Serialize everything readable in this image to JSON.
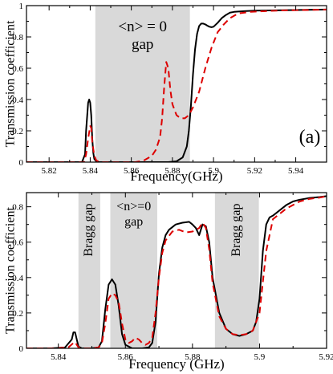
{
  "chart_data": [
    {
      "type": "line",
      "panel_label": "(a)",
      "xlabel": "Frequency(GHz)",
      "ylabel": "Transmission coefficient",
      "xlim": [
        5.809,
        5.955
      ],
      "ylim": [
        0,
        1.0
      ],
      "xticks": [
        5.82,
        5.84,
        5.86,
        5.88,
        5.9,
        5.92,
        5.94
      ],
      "xtick_labels": [
        "5.82",
        "5.84",
        "5.86",
        "5.88",
        "5.9",
        "5.92",
        "5.94"
      ],
      "yticks": [
        0,
        0.2,
        0.4,
        0.6,
        0.8,
        1
      ],
      "ytick_labels": [
        "0",
        "0.2",
        "0.4",
        "0.6",
        "0.8",
        "1"
      ],
      "grid": false,
      "shaded_regions": [
        {
          "from": 5.8425,
          "to": 5.8885,
          "label_lines": [
            "<n> = 0",
            "gap"
          ],
          "label_orientation": "horizontal"
        }
      ],
      "series": [
        {
          "style": "solid",
          "color": "#000000",
          "x": [
            5.809,
            5.836,
            5.8375,
            5.838,
            5.839,
            5.8395,
            5.84,
            5.8405,
            5.841,
            5.8415,
            5.842,
            5.843,
            5.844,
            5.846,
            5.85,
            5.86,
            5.87,
            5.878,
            5.882,
            5.885,
            5.887,
            5.888,
            5.889,
            5.89,
            5.891,
            5.892,
            5.893,
            5.894,
            5.895,
            5.896,
            5.897,
            5.898,
            5.899,
            5.9,
            5.902,
            5.904,
            5.906,
            5.908,
            5.91,
            5.915,
            5.92,
            5.93,
            5.94,
            5.955
          ],
          "y": [
            0,
            0,
            0.05,
            0.2,
            0.38,
            0.4,
            0.38,
            0.3,
            0.15,
            0.06,
            0.02,
            0.005,
            0,
            0,
            0,
            0,
            0,
            0,
            0.005,
            0.03,
            0.1,
            0.2,
            0.36,
            0.56,
            0.72,
            0.82,
            0.87,
            0.885,
            0.885,
            0.88,
            0.872,
            0.865,
            0.862,
            0.865,
            0.89,
            0.92,
            0.94,
            0.955,
            0.96,
            0.965,
            0.968,
            0.97,
            0.972,
            0.975
          ]
        },
        {
          "style": "dashed",
          "color": "#dd0000",
          "x": [
            5.809,
            5.837,
            5.838,
            5.839,
            5.84,
            5.8405,
            5.841,
            5.842,
            5.843,
            5.845,
            5.855,
            5.862,
            5.866,
            5.87,
            5.872,
            5.874,
            5.875,
            5.876,
            5.877,
            5.878,
            5.879,
            5.88,
            5.882,
            5.884,
            5.886,
            5.888,
            5.89,
            5.893,
            5.896,
            5.899,
            5.902,
            5.905,
            5.908,
            5.912,
            5.918,
            5.925,
            5.935,
            5.945,
            5.955
          ],
          "y": [
            0,
            0,
            0.05,
            0.15,
            0.23,
            0.22,
            0.13,
            0.04,
            0.01,
            0,
            0,
            0,
            0.01,
            0.04,
            0.08,
            0.16,
            0.28,
            0.48,
            0.64,
            0.6,
            0.46,
            0.37,
            0.3,
            0.28,
            0.28,
            0.3,
            0.35,
            0.45,
            0.6,
            0.73,
            0.83,
            0.88,
            0.92,
            0.95,
            0.96,
            0.965,
            0.97,
            0.972,
            0.975
          ]
        }
      ]
    },
    {
      "type": "line",
      "xlabel": "Frequency (GHz)",
      "ylabel": "Transmission coefficient",
      "xlim": [
        5.8305,
        5.92
      ],
      "ylim": [
        0,
        0.88
      ],
      "xticks": [
        5.84,
        5.86,
        5.88,
        5.9,
        5.92
      ],
      "xtick_labels": [
        "5.84",
        "5.86",
        "5.88",
        "5.9",
        "5.92"
      ],
      "yticks": [
        0,
        0.2,
        0.4,
        0.6,
        0.8
      ],
      "ytick_labels": [
        "0",
        "0.2",
        "0.4",
        "0.6",
        "0.8"
      ],
      "grid": false,
      "shaded_regions": [
        {
          "from": 5.846,
          "to": 5.8525,
          "label_lines": [
            "Bragg gap"
          ],
          "label_orientation": "vertical"
        },
        {
          "from": 5.8555,
          "to": 5.8695,
          "label_lines": [
            "<n>=0",
            "gap"
          ],
          "label_orientation": "horizontal"
        },
        {
          "from": 5.8867,
          "to": 5.8998,
          "label_lines": [
            "Bragg gap"
          ],
          "label_orientation": "vertical"
        }
      ],
      "series": [
        {
          "style": "solid",
          "color": "#000000",
          "x": [
            5.8305,
            5.838,
            5.842,
            5.844,
            5.8445,
            5.845,
            5.8455,
            5.846,
            5.847,
            5.85,
            5.852,
            5.853,
            5.854,
            5.855,
            5.856,
            5.857,
            5.858,
            5.859,
            5.86,
            5.862,
            5.865,
            5.867,
            5.868,
            5.869,
            5.87,
            5.871,
            5.872,
            5.873,
            5.875,
            5.877,
            5.879,
            5.88,
            5.881,
            5.882,
            5.883,
            5.884,
            5.885,
            5.886,
            5.888,
            5.89,
            5.892,
            5.894,
            5.896,
            5.898,
            5.899,
            5.9,
            5.901,
            5.902,
            5.903,
            5.904,
            5.906,
            5.908,
            5.91,
            5.912,
            5.915,
            5.918,
            5.92
          ],
          "y": [
            0,
            0,
            0.005,
            0.05,
            0.09,
            0.09,
            0.05,
            0.01,
            0,
            0,
            0.005,
            0.04,
            0.22,
            0.36,
            0.39,
            0.36,
            0.24,
            0.08,
            0.02,
            0,
            0,
            0.005,
            0.03,
            0.15,
            0.42,
            0.57,
            0.64,
            0.67,
            0.7,
            0.71,
            0.715,
            0.7,
            0.68,
            0.64,
            0.7,
            0.69,
            0.6,
            0.4,
            0.2,
            0.11,
            0.08,
            0.07,
            0.08,
            0.1,
            0.15,
            0.28,
            0.55,
            0.7,
            0.74,
            0.75,
            0.78,
            0.81,
            0.83,
            0.84,
            0.85,
            0.855,
            0.86
          ]
        },
        {
          "style": "dashed",
          "color": "#dd0000",
          "x": [
            5.8305,
            5.838,
            5.843,
            5.8445,
            5.845,
            5.8455,
            5.846,
            5.847,
            5.85,
            5.852,
            5.853,
            5.854,
            5.855,
            5.856,
            5.857,
            5.858,
            5.859,
            5.86,
            5.861,
            5.862,
            5.863,
            5.864,
            5.865,
            5.866,
            5.867,
            5.868,
            5.869,
            5.87,
            5.871,
            5.872,
            5.874,
            5.876,
            5.878,
            5.88,
            5.882,
            5.883,
            5.884,
            5.885,
            5.886,
            5.888,
            5.89,
            5.892,
            5.894,
            5.896,
            5.898,
            5.9,
            5.902,
            5.904,
            5.906,
            5.908,
            5.91,
            5.912,
            5.915,
            5.918,
            5.92
          ],
          "y": [
            0,
            0,
            0.005,
            0.03,
            0.035,
            0.02,
            0.005,
            0,
            0,
            0.005,
            0.03,
            0.14,
            0.28,
            0.31,
            0.3,
            0.26,
            0.14,
            0.05,
            0.03,
            0.04,
            0.06,
            0.05,
            0.03,
            0.02,
            0.03,
            0.06,
            0.2,
            0.4,
            0.54,
            0.61,
            0.66,
            0.67,
            0.655,
            0.66,
            0.68,
            0.71,
            0.68,
            0.56,
            0.37,
            0.18,
            0.11,
            0.08,
            0.075,
            0.08,
            0.1,
            0.2,
            0.55,
            0.73,
            0.76,
            0.79,
            0.81,
            0.83,
            0.845,
            0.852,
            0.86
          ]
        }
      ]
    }
  ]
}
